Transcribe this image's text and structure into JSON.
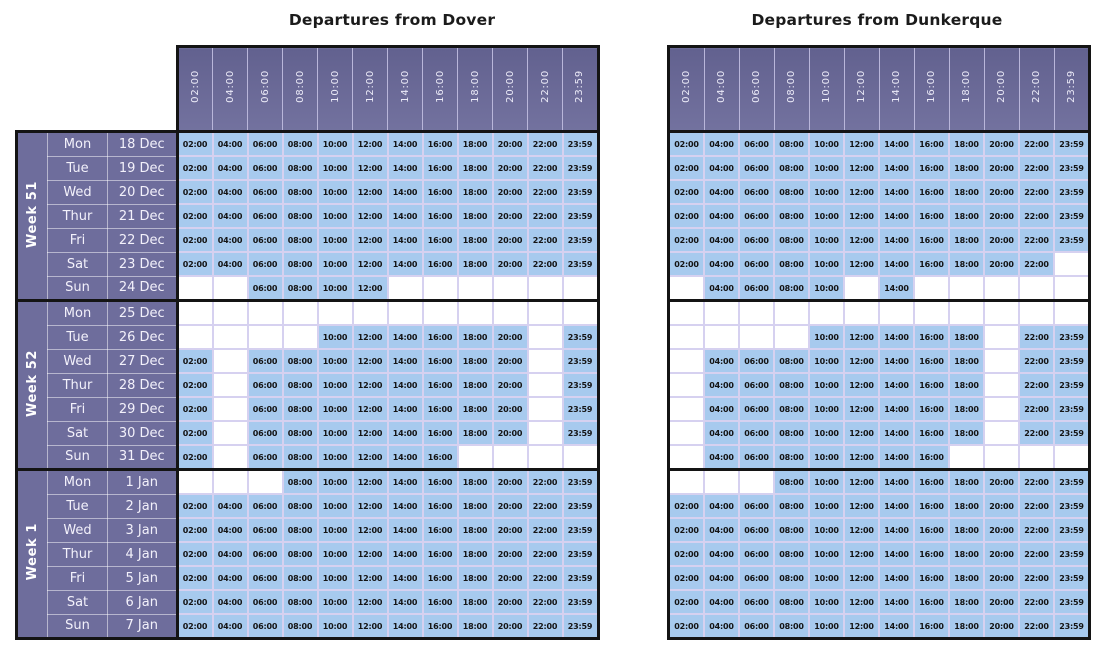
{
  "colors": {
    "header_purple": "#6a6a9a",
    "left_block_purple": "#6e6d9c",
    "filled_cell_blue": "#a7caee",
    "grid_line_lavender": "#d6d1f0",
    "band_border_black": "#141414",
    "cell_text": "#141414",
    "header_text": "#ecebf8",
    "page_background": "#ffffff"
  },
  "times": [
    "02:00",
    "04:00",
    "06:00",
    "08:00",
    "10:00",
    "12:00",
    "14:00",
    "16:00",
    "18:00",
    "20:00",
    "22:00",
    "23:59"
  ],
  "tables": [
    {
      "title": "Departures from Dover",
      "weeks": [
        {
          "label": "Week 51",
          "days": [
            {
              "day": "Mon",
              "date": "18 Dec",
              "slots": "111111111111"
            },
            {
              "day": "Tue",
              "date": "19 Dec",
              "slots": "111111111111"
            },
            {
              "day": "Wed",
              "date": "20 Dec",
              "slots": "111111111111"
            },
            {
              "day": "Thur",
              "date": "21 Dec",
              "slots": "111111111111"
            },
            {
              "day": "Fri",
              "date": "22 Dec",
              "slots": "111111111111"
            },
            {
              "day": "Sat",
              "date": "23 Dec",
              "slots": "111111111111"
            },
            {
              "day": "Sun",
              "date": "24 Dec",
              "slots": "001111000000"
            }
          ]
        },
        {
          "label": "Week 52",
          "days": [
            {
              "day": "Mon",
              "date": "25 Dec",
              "slots": "000000000000"
            },
            {
              "day": "Tue",
              "date": "26 Dec",
              "slots": "000011111101"
            },
            {
              "day": "Wed",
              "date": "27 Dec",
              "slots": "101111111101"
            },
            {
              "day": "Thur",
              "date": "28 Dec",
              "slots": "101111111101"
            },
            {
              "day": "Fri",
              "date": "29 Dec",
              "slots": "101111111101"
            },
            {
              "day": "Sat",
              "date": "30 Dec",
              "slots": "101111111101"
            },
            {
              "day": "Sun",
              "date": "31 Dec",
              "slots": "101111110000"
            }
          ]
        },
        {
          "label": "Week 1",
          "days": [
            {
              "day": "Mon",
              "date": "1 Jan",
              "slots": "000111111111"
            },
            {
              "day": "Tue",
              "date": "2 Jan",
              "slots": "111111111111"
            },
            {
              "day": "Wed",
              "date": "3 Jan",
              "slots": "111111111111"
            },
            {
              "day": "Thur",
              "date": "4 Jan",
              "slots": "111111111111"
            },
            {
              "day": "Fri",
              "date": "5 Jan",
              "slots": "111111111111"
            },
            {
              "day": "Sat",
              "date": "6 Jan",
              "slots": "111111111111"
            },
            {
              "day": "Sun",
              "date": "7 Jan",
              "slots": "111111111111"
            }
          ]
        }
      ]
    },
    {
      "title": "Departures from Dunkerque",
      "weeks": [
        {
          "days": [
            {
              "slots": "111111111111"
            },
            {
              "slots": "111111111111"
            },
            {
              "slots": "111111111111"
            },
            {
              "slots": "111111111111"
            },
            {
              "slots": "111111111111"
            },
            {
              "slots": "111111111110"
            },
            {
              "slots": "011110100000"
            }
          ]
        },
        {
          "days": [
            {
              "slots": "000000000000"
            },
            {
              "slots": "000011111011"
            },
            {
              "slots": "011111111011"
            },
            {
              "slots": "011111111011"
            },
            {
              "slots": "011111111011"
            },
            {
              "slots": "011111111011"
            },
            {
              "slots": "011111110000"
            }
          ]
        },
        {
          "days": [
            {
              "slots": "000111111111"
            },
            {
              "slots": "111111111111"
            },
            {
              "slots": "111111111111"
            },
            {
              "slots": "111111111111"
            },
            {
              "slots": "111111111111"
            },
            {
              "slots": "111111111111"
            },
            {
              "slots": "111111111111"
            }
          ]
        }
      ]
    }
  ]
}
